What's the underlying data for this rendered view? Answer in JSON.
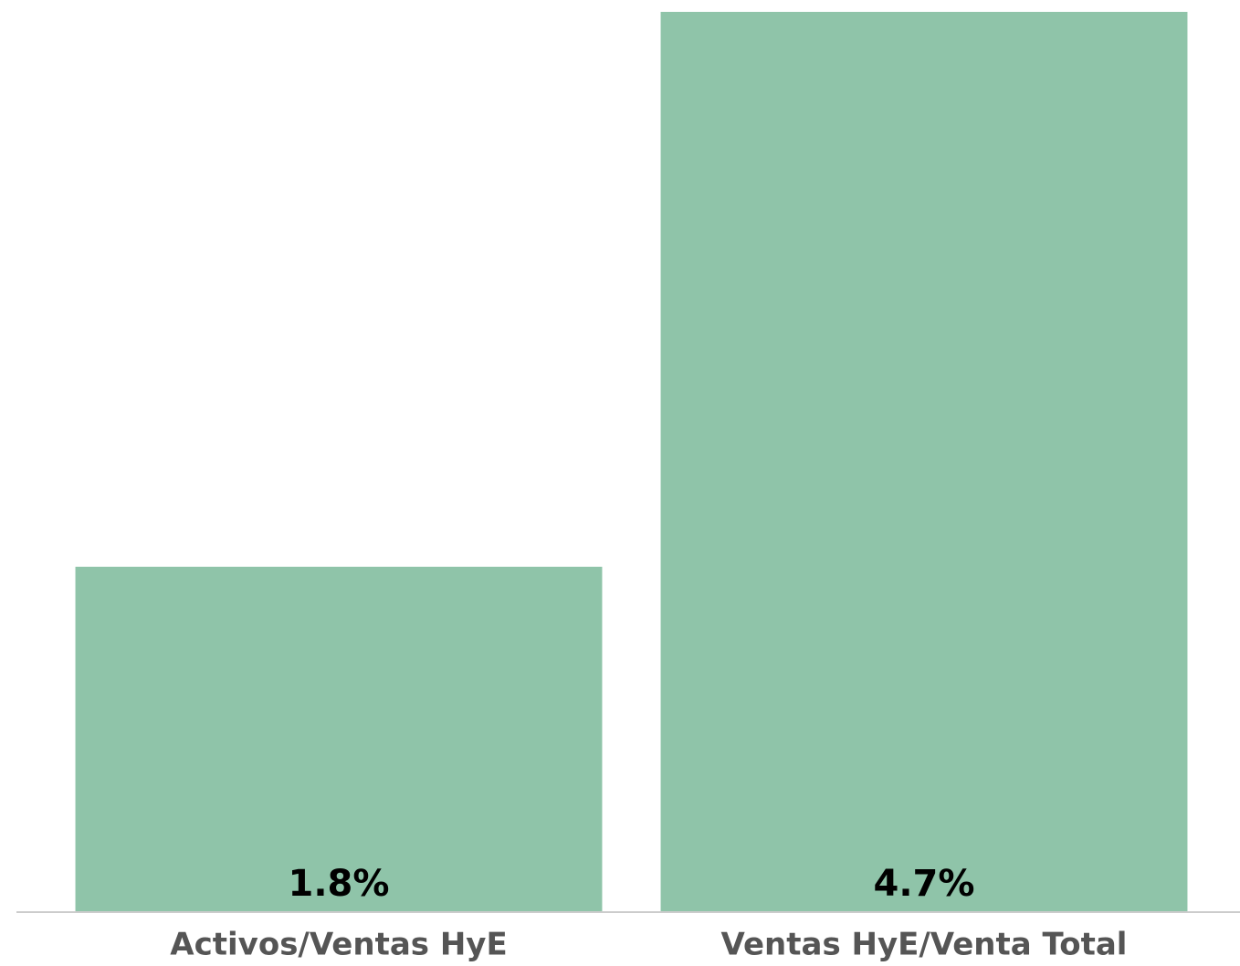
{
  "chart_data": {
    "type": "bar",
    "categories": [
      "Activos/Ventas HyE",
      "Ventas HyE/Venta Total"
    ],
    "values": [
      1.8,
      4.7
    ],
    "value_labels": [
      "1.8%",
      "4.7%"
    ],
    "color": "#8fc4a9",
    "ylim": [
      0,
      4.7
    ]
  }
}
